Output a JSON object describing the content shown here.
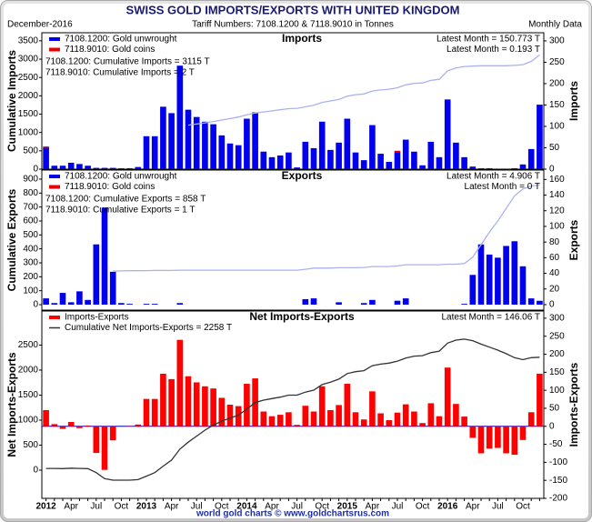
{
  "header": {
    "title": "SWISS GOLD IMPORTS/EXPORTS WITH UNITED KINGDOM",
    "date": "December-2016",
    "tariff": "Tariff Numbers: 7108.1200 & 7118.9010 in Tonnes",
    "frequency": "Monthly Data"
  },
  "footer": "world gold charts © www.goldchartsrus.com",
  "chart_data": [
    {
      "type": "bar",
      "title": "Imports",
      "y_label": "Cumulative Imports",
      "y2_label": "Imports",
      "ylim": [
        0,
        3720
      ],
      "yticks": [
        0,
        500,
        1000,
        1500,
        2000,
        2500,
        3000,
        3500
      ],
      "y2lim": [
        0,
        319
      ],
      "y2ticks": [
        0,
        50,
        100,
        150,
        200,
        250,
        300
      ],
      "series": [
        {
          "name": "7108.1200: Gold unwrought",
          "color": "#0000ee",
          "kind": "bar",
          "axis": "y2",
          "values": [
            50,
            8,
            8,
            15,
            12,
            8,
            3,
            3,
            3,
            2,
            2,
            5,
            77,
            77,
            146,
            131,
            242,
            139,
            122,
            111,
            105,
            79,
            60,
            56,
            118,
            133,
            41,
            28,
            32,
            39,
            4,
            64,
            49,
            111,
            45,
            62,
            118,
            39,
            21,
            103,
            36,
            17,
            40,
            69,
            41,
            9,
            64,
            28,
            163,
            62,
            28,
            6,
            2,
            2,
            0,
            0,
            2,
            11,
            47,
            150.773
          ]
        },
        {
          "name": "7118.9010: Gold coins",
          "color": "#ee0000",
          "kind": "bar",
          "axis": "y2",
          "values": [
            3,
            0,
            0,
            0,
            0,
            0,
            0,
            0,
            0,
            0,
            0,
            0,
            0,
            0,
            0,
            0,
            0,
            0,
            0,
            0,
            0,
            0,
            0,
            0,
            0,
            0,
            0,
            0,
            0,
            0,
            0,
            0,
            0,
            0,
            0,
            0,
            0,
            0,
            0,
            0,
            0,
            0,
            3,
            0,
            0,
            0,
            0,
            0,
            0,
            0,
            0,
            0,
            0,
            0,
            0,
            0,
            0,
            0,
            0,
            0.193
          ]
        },
        {
          "color": "#aab2ee",
          "kind": "line",
          "values": [
            null,
            null,
            null,
            null,
            null,
            null,
            null,
            null,
            null,
            null,
            null,
            null,
            null,
            null,
            null,
            null,
            null,
            1200,
            1230,
            1260,
            1300,
            1340,
            1380,
            1420,
            1480,
            1530,
            1560,
            1590,
            1620,
            1650,
            1660,
            1700,
            1740,
            1820,
            1860,
            1900,
            1990,
            2030,
            2050,
            2130,
            2160,
            2180,
            2220,
            2300,
            2340,
            2350,
            2420,
            2450,
            2680,
            2760,
            2800,
            2810,
            2820,
            2820,
            2820,
            2820,
            2830,
            2850,
            2940,
            3115
          ]
        }
      ],
      "notes": [
        "7108.1200: Cumulative Imports = 3115 T",
        "7118.9010: Cumulative Imports = 2 T"
      ],
      "latest": [
        "Latest Month = 150.773 T",
        "Latest Month = 0.193 T"
      ]
    },
    {
      "type": "bar",
      "title": "Exports",
      "y_label": "Cumulative Exports",
      "y2_label": "Exports",
      "ylim": [
        -39,
        965
      ],
      "yticks": [
        0,
        100,
        200,
        300,
        400,
        500,
        600,
        700,
        800,
        900
      ],
      "y2lim": [
        -7,
        172
      ],
      "y2ticks": [
        0,
        20,
        40,
        60,
        80,
        100,
        120,
        140,
        160
      ],
      "series": [
        {
          "name": "7108.1200: Gold unwrought",
          "color": "#0000ee",
          "kind": "bar",
          "axis": "y2",
          "values": [
            8,
            2,
            15,
            3,
            17,
            6,
            77,
            124,
            42,
            2,
            1,
            0,
            1,
            1,
            0,
            0,
            2,
            0,
            0,
            0,
            0,
            0,
            0,
            0,
            0,
            0,
            0,
            0,
            0,
            0,
            0,
            7,
            8,
            0,
            0,
            3,
            0,
            0,
            2,
            6,
            0,
            0,
            5,
            8,
            0,
            0,
            0,
            0,
            0,
            0,
            1,
            38,
            77,
            64,
            60,
            75,
            81,
            49,
            8,
            4.906
          ]
        },
        {
          "name": "7118.9010: Gold coins",
          "color": "#ee0000",
          "kind": "bar",
          "axis": "y2",
          "values": [
            0,
            0,
            0,
            0,
            0,
            0,
            0,
            0,
            0,
            0,
            0,
            0,
            0,
            0,
            0,
            0,
            0,
            0,
            0,
            0,
            0,
            0,
            0,
            0,
            0,
            0,
            0,
            0,
            0,
            0,
            0,
            0,
            0,
            0,
            0,
            0,
            0,
            0,
            0,
            0,
            0,
            0,
            0,
            0,
            0,
            0,
            0,
            0,
            0,
            0,
            0,
            0,
            0,
            0,
            0,
            0,
            0,
            0,
            0,
            0
          ]
        },
        {
          "color": "#aab2ee",
          "kind": "line",
          "values": [
            null,
            null,
            null,
            null,
            null,
            null,
            null,
            null,
            240,
            242,
            243,
            243,
            244,
            245,
            245,
            245,
            247,
            247,
            247,
            247,
            247,
            247,
            247,
            247,
            247,
            247,
            247,
            247,
            247,
            247,
            247,
            254,
            262,
            262,
            262,
            265,
            265,
            265,
            267,
            273,
            273,
            273,
            278,
            286,
            286,
            286,
            286,
            286,
            290,
            290,
            295,
            340,
            430,
            520,
            600,
            690,
            780,
            830,
            850,
            858
          ]
        }
      ],
      "notes": [
        "7108.1200: Cumulative Exports = 858 T",
        "7118.9010: Cumulative Exports = 1 T"
      ],
      "latest": [
        "Latest Month = 4.906 T",
        "Latest Month = 0 T"
      ]
    },
    {
      "type": "bar",
      "title": "Net Imports-Exports",
      "y_label": "Net Imports-Exports",
      "y2_label": "Imports-Exports",
      "ylim": [
        -564,
        3182
      ],
      "yticks": [
        0,
        500,
        1000,
        1500,
        2000,
        2500
      ],
      "y2lim": [
        -200,
        320
      ],
      "y2ticks": [
        -200,
        -150,
        -100,
        -50,
        0,
        50,
        100,
        150,
        200,
        250,
        300
      ],
      "baseline_color": "#0000cc",
      "categories": [
        "2012",
        null,
        null,
        "Apr",
        null,
        null,
        "Jul",
        null,
        null,
        "Oct",
        null,
        null,
        "2013",
        null,
        null,
        "Apr",
        null,
        null,
        "Jul",
        null,
        null,
        "Oct",
        null,
        null,
        "2014",
        null,
        null,
        "Apr",
        null,
        null,
        "Jul",
        null,
        null,
        "Oct",
        null,
        null,
        "2015",
        null,
        null,
        "Apr",
        null,
        null,
        "Jul",
        null,
        null,
        "Oct",
        null,
        null,
        "2016",
        null,
        null,
        "Apr",
        null,
        null,
        "Jul",
        null,
        null,
        "Oct",
        null,
        null
      ],
      "series": [
        {
          "name": "Imports-Exports",
          "color": "#ff0000",
          "kind": "bar",
          "axis": "y2",
          "values": [
            45,
            6,
            -7,
            12,
            -5,
            2,
            -74,
            -121,
            -39,
            0,
            1,
            5,
            76,
            76,
            146,
            131,
            240,
            139,
            122,
            111,
            105,
            79,
            60,
            56,
            118,
            133,
            41,
            28,
            32,
            39,
            4,
            57,
            41,
            111,
            45,
            59,
            118,
            39,
            19,
            97,
            36,
            17,
            38,
            61,
            41,
            9,
            64,
            28,
            163,
            62,
            27,
            -32,
            -75,
            -62,
            -60,
            -75,
            -79,
            -38,
            39,
            146.06
          ]
        },
        {
          "name": "Cumulative Net Imports-Exports = 2258 T",
          "color": "#333333",
          "kind": "line",
          "values": [
            35,
            35,
            30,
            40,
            35,
            30,
            -50,
            -170,
            -200,
            -200,
            -200,
            -190,
            -120,
            -50,
            80,
            200,
            420,
            560,
            680,
            800,
            900,
            980,
            1040,
            1100,
            1220,
            1350,
            1400,
            1430,
            1460,
            1500,
            1500,
            1560,
            1600,
            1710,
            1760,
            1820,
            1930,
            1970,
            1990,
            2090,
            2120,
            2140,
            2180,
            2240,
            2280,
            2290,
            2350,
            2380,
            2540,
            2600,
            2620,
            2590,
            2520,
            2460,
            2400,
            2330,
            2250,
            2210,
            2250,
            2258
          ]
        }
      ],
      "latest": [
        "Latest Month = 146.06 T"
      ]
    }
  ]
}
